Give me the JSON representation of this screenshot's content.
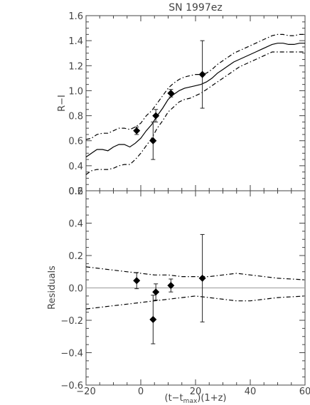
{
  "chart_data": [
    {
      "type": "line",
      "panel": "top",
      "title": "SN 1997ez",
      "ylabel": "R−I",
      "ylim": [
        0.2,
        1.6
      ],
      "xlim": [
        -20,
        60
      ],
      "yticks": [
        "0.2",
        "0.4",
        "0.6",
        "0.8",
        "1.0",
        "1.2",
        "1.4",
        "1.6"
      ],
      "series": [
        {
          "role": "model",
          "style": "solid",
          "x": [
            -20,
            -18,
            -16,
            -14,
            -12,
            -10,
            -8,
            -6,
            -4,
            -2,
            0,
            2,
            4,
            6,
            8,
            10,
            12,
            14,
            16,
            18,
            20,
            22,
            24,
            26,
            28,
            30,
            32,
            34,
            36,
            38,
            40,
            42,
            44,
            46,
            48,
            50,
            52,
            54,
            56,
            58,
            60
          ],
          "y": [
            0.47,
            0.5,
            0.53,
            0.53,
            0.52,
            0.55,
            0.57,
            0.57,
            0.55,
            0.58,
            0.62,
            0.68,
            0.73,
            0.8,
            0.86,
            0.93,
            0.97,
            1.0,
            1.02,
            1.03,
            1.04,
            1.05,
            1.07,
            1.1,
            1.14,
            1.17,
            1.2,
            1.23,
            1.25,
            1.27,
            1.29,
            1.31,
            1.33,
            1.35,
            1.37,
            1.38,
            1.38,
            1.37,
            1.37,
            1.38,
            1.38
          ]
        },
        {
          "role": "upper-bound",
          "style": "dash-dot",
          "x": [
            -20,
            -18,
            -16,
            -14,
            -12,
            -10,
            -8,
            -6,
            -4,
            -2,
            0,
            2,
            4,
            6,
            8,
            10,
            12,
            14,
            16,
            18,
            20,
            22,
            24,
            26,
            28,
            30,
            32,
            34,
            36,
            38,
            40,
            42,
            44,
            46,
            48,
            50,
            52,
            54,
            56,
            58,
            60
          ],
          "y": [
            0.61,
            0.62,
            0.65,
            0.66,
            0.66,
            0.68,
            0.7,
            0.7,
            0.69,
            0.71,
            0.74,
            0.8,
            0.84,
            0.9,
            0.96,
            1.02,
            1.06,
            1.09,
            1.11,
            1.12,
            1.13,
            1.13,
            1.14,
            1.17,
            1.21,
            1.24,
            1.27,
            1.3,
            1.32,
            1.34,
            1.36,
            1.38,
            1.4,
            1.42,
            1.44,
            1.45,
            1.45,
            1.44,
            1.44,
            1.45,
            1.45
          ]
        },
        {
          "role": "lower-bound",
          "style": "dash-dot",
          "x": [
            -20,
            -18,
            -16,
            -14,
            -12,
            -10,
            -8,
            -6,
            -4,
            -2,
            0,
            2,
            4,
            6,
            8,
            10,
            12,
            14,
            16,
            18,
            20,
            22,
            24,
            26,
            28,
            30,
            32,
            34,
            36,
            38,
            40,
            42,
            44,
            46,
            48,
            50,
            52,
            54,
            56,
            58,
            60
          ],
          "y": [
            0.33,
            0.36,
            0.37,
            0.37,
            0.37,
            0.38,
            0.4,
            0.41,
            0.41,
            0.45,
            0.5,
            0.56,
            0.62,
            0.7,
            0.76,
            0.83,
            0.87,
            0.91,
            0.93,
            0.94,
            0.96,
            0.98,
            1.01,
            1.04,
            1.07,
            1.1,
            1.13,
            1.16,
            1.19,
            1.21,
            1.23,
            1.25,
            1.27,
            1.29,
            1.31,
            1.31,
            1.31,
            1.31,
            1.31,
            1.31,
            1.31
          ]
        },
        {
          "role": "observations",
          "style": "markers",
          "x": [
            -1.5,
            4.5,
            5.5,
            11.0,
            22.5
          ],
          "y": [
            0.68,
            0.6,
            0.8,
            0.98,
            1.13
          ],
          "err": [
            0.03,
            0.15,
            0.05,
            0.03,
            0.27
          ]
        }
      ]
    },
    {
      "type": "scatter",
      "panel": "bottom",
      "xlabel": "(t−t",
      "xlabel_sub": "max",
      "xlabel_tail": ")(1+z)",
      "ylabel": "Residuals",
      "ylim": [
        -0.6,
        0.6
      ],
      "xlim": [
        -20,
        60
      ],
      "xticks": [
        "−20",
        "0",
        "20",
        "40",
        "60"
      ],
      "yticks": [
        "−0.6",
        "−0.4",
        "−0.2",
        "0.0",
        "0.2",
        "0.4",
        "0.6"
      ],
      "series": [
        {
          "role": "zero-line",
          "style": "solid-gray",
          "x": [
            -20,
            60
          ],
          "y": [
            0,
            0
          ]
        },
        {
          "role": "upper-bound",
          "style": "dash-dot",
          "x": [
            -20,
            -15,
            -10,
            -5,
            0,
            5,
            10,
            15,
            20,
            25,
            30,
            35,
            40,
            45,
            50,
            55,
            60
          ],
          "y": [
            0.13,
            0.12,
            0.11,
            0.1,
            0.09,
            0.08,
            0.08,
            0.07,
            0.07,
            0.07,
            0.08,
            0.09,
            0.08,
            0.07,
            0.06,
            0.055,
            0.05
          ]
        },
        {
          "role": "lower-bound",
          "style": "dash-dot",
          "x": [
            -20,
            -15,
            -10,
            -5,
            0,
            5,
            10,
            15,
            20,
            25,
            30,
            35,
            40,
            45,
            50,
            55,
            60
          ],
          "y": [
            -0.13,
            -0.12,
            -0.11,
            -0.1,
            -0.09,
            -0.08,
            -0.07,
            -0.06,
            -0.05,
            -0.06,
            -0.07,
            -0.08,
            -0.08,
            -0.07,
            -0.06,
            -0.055,
            -0.05
          ]
        },
        {
          "role": "observations",
          "style": "markers",
          "x": [
            -1.5,
            4.5,
            5.5,
            11.0,
            22.5
          ],
          "y": [
            0.045,
            -0.195,
            -0.025,
            0.015,
            0.06
          ],
          "err": [
            0.05,
            0.15,
            0.05,
            0.04,
            0.27
          ]
        }
      ]
    }
  ]
}
